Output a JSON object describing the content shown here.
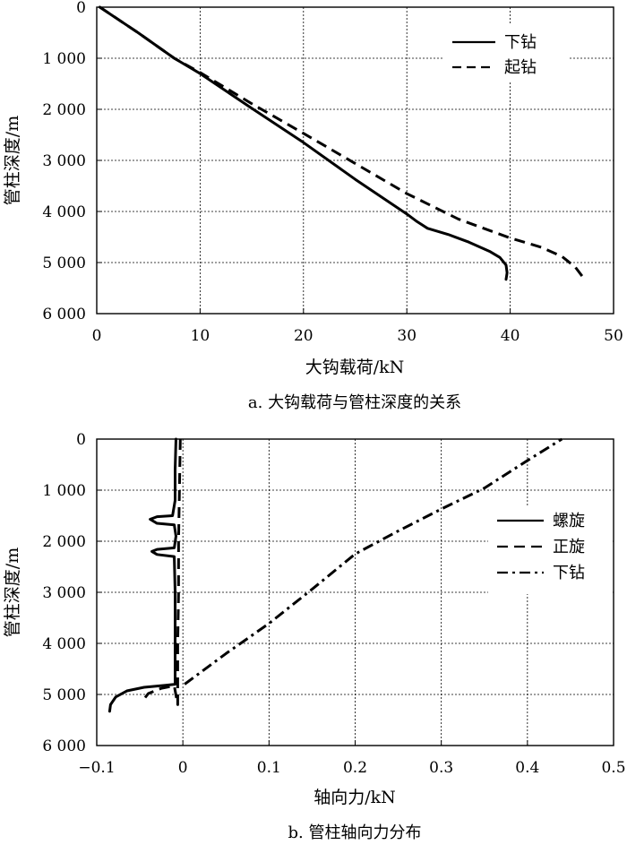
{
  "chart_data": [
    {
      "type": "line",
      "caption": "a. 大钩载荷与管柱深度的关系",
      "xlabel": "大钩载荷/kN",
      "ylabel": "管柱深度/m",
      "xlim": [
        0,
        50
      ],
      "ylim": [
        0,
        6000
      ],
      "y_inverted": true,
      "grid": true,
      "legend_position": "top-right",
      "x_ticks": [
        0,
        10,
        20,
        30,
        40,
        50
      ],
      "x_tick_labels": [
        "0",
        "10",
        "20",
        "30",
        "40",
        "50"
      ],
      "y_ticks": [
        0,
        1000,
        2000,
        3000,
        4000,
        5000,
        6000
      ],
      "y_tick_labels": [
        "0",
        "1 000",
        "2 000",
        "3 000",
        "4 000",
        "5 000",
        "6 000"
      ],
      "series": [
        {
          "name": "下钻",
          "style": "solid",
          "x": [
            0.3,
            4,
            7.5,
            10,
            15,
            20,
            25,
            30,
            31,
            32,
            34,
            36,
            38,
            39,
            39.6,
            39.7,
            39.6
          ],
          "y": [
            0,
            500,
            1000,
            1300,
            1980,
            2650,
            3370,
            4050,
            4200,
            4330,
            4450,
            4600,
            4780,
            4900,
            5050,
            5200,
            5330
          ]
        },
        {
          "name": "起钻",
          "style": "dashed",
          "x": [
            0.3,
            4,
            7.5,
            10,
            15,
            20,
            25,
            30,
            35,
            40,
            43,
            45,
            46.3,
            47.2
          ],
          "y": [
            0,
            500,
            1000,
            1280,
            1890,
            2470,
            3060,
            3650,
            4150,
            4520,
            4700,
            4880,
            5090,
            5330
          ]
        }
      ]
    },
    {
      "type": "line",
      "caption": "b. 管柱轴向力分布",
      "xlabel": "轴向力/kN",
      "ylabel": "管柱深度/m",
      "xlim": [
        -0.1,
        0.5
      ],
      "ylim": [
        0,
        6000
      ],
      "y_inverted": true,
      "grid": true,
      "legend_position": "right",
      "x_ticks": [
        -0.1,
        0,
        0.1,
        0.2,
        0.3,
        0.4,
        0.5
      ],
      "x_tick_labels": [
        "−0.1",
        "0",
        "0.1",
        "0.2",
        "0.3",
        "0.4",
        "0.5"
      ],
      "y_ticks": [
        0,
        1000,
        2000,
        3000,
        4000,
        5000,
        6000
      ],
      "y_tick_labels": [
        "0",
        "1 000",
        "2 000",
        "3 000",
        "4 000",
        "5 000",
        "6 000"
      ],
      "series": [
        {
          "name": "螺旋",
          "style": "solid",
          "x": [
            -0.008,
            -0.009,
            -0.009,
            -0.012,
            -0.03,
            -0.038,
            -0.03,
            -0.01,
            -0.008,
            -0.01,
            -0.03,
            -0.036,
            -0.03,
            -0.01,
            -0.009,
            -0.009,
            -0.009,
            -0.02,
            -0.045,
            -0.065,
            -0.078,
            -0.084,
            -0.085
          ],
          "y": [
            0,
            600,
            1200,
            1500,
            1520,
            1570,
            1650,
            1680,
            1900,
            2130,
            2160,
            2200,
            2260,
            2300,
            3000,
            4000,
            4800,
            4820,
            4860,
            4930,
            5050,
            5200,
            5330
          ]
        },
        {
          "name": "正旋",
          "style": "dashed",
          "x": [
            -0.003,
            -0.004,
            -0.005,
            -0.005,
            -0.006,
            -0.006,
            -0.006,
            -0.01,
            -0.025,
            -0.04,
            -0.048
          ],
          "y": [
            0,
            1000,
            2000,
            3000,
            4000,
            4800,
            5200,
            4830,
            4880,
            4980,
            5150
          ]
        },
        {
          "name": "下钻",
          "style": "dashdot",
          "x": [
            0.002,
            0.05,
            0.1,
            0.15,
            0.2,
            0.25,
            0.3,
            0.35,
            0.4,
            0.44
          ],
          "y": [
            4800,
            4200,
            3610,
            2940,
            2250,
            1800,
            1370,
            960,
            420,
            0
          ]
        }
      ]
    }
  ]
}
